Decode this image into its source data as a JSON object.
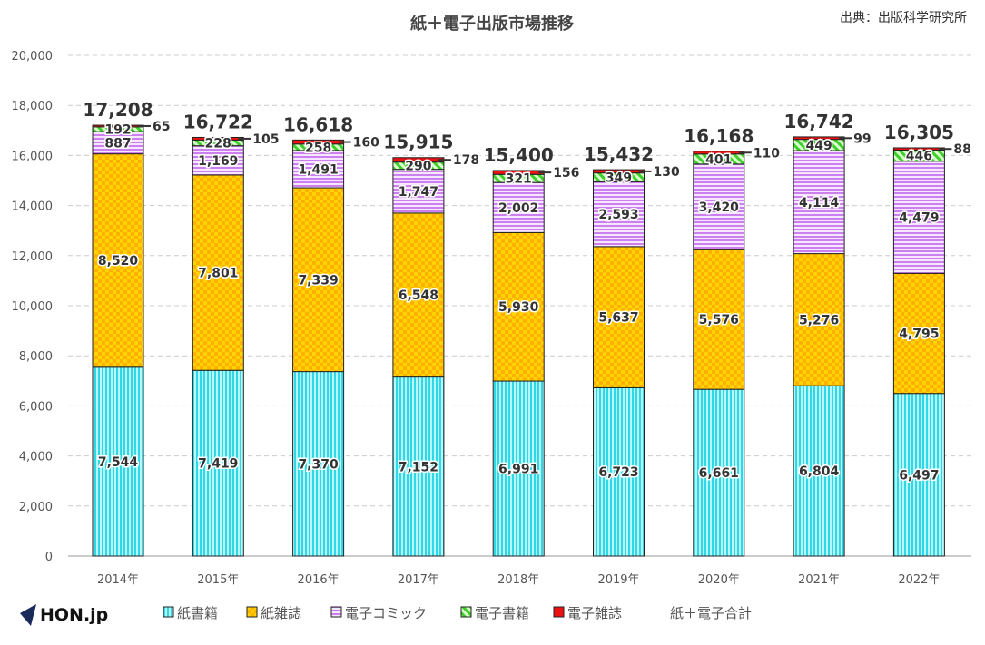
{
  "source": "出典：出版科学研究所",
  "logo": "HON.jp",
  "chart_data": {
    "type": "bar",
    "stacked": true,
    "title": "紙＋電子出版市場推移",
    "categories": [
      "2014年",
      "2015年",
      "2016年",
      "2017年",
      "2018年",
      "2019年",
      "2020年",
      "2021年",
      "2022年"
    ],
    "series": [
      {
        "name": "紙書籍",
        "color": "#55e8f0",
        "values": [
          7544,
          7419,
          7370,
          7152,
          6991,
          6723,
          6661,
          6804,
          6497
        ]
      },
      {
        "name": "紙雑誌",
        "color": "#ffcc00",
        "values": [
          8520,
          7801,
          7339,
          6548,
          5930,
          5637,
          5576,
          5276,
          4795
        ]
      },
      {
        "name": "電子コミック",
        "color": "#d99cf5",
        "values": [
          887,
          1169,
          1491,
          1747,
          2002,
          2593,
          3420,
          4114,
          4479
        ]
      },
      {
        "name": "電子書籍",
        "color": "#66e055",
        "values": [
          192,
          228,
          258,
          290,
          321,
          349,
          401,
          449,
          446
        ]
      },
      {
        "name": "電子雑誌",
        "color": "#ee1111",
        "values": [
          65,
          105,
          160,
          178,
          156,
          130,
          110,
          99,
          88
        ]
      }
    ],
    "totals_name": "紙＋電子合計",
    "totals": [
      17208,
      16722,
      16618,
      15915,
      15400,
      15432,
      16168,
      16742,
      16305
    ],
    "ylim": [
      0,
      20000
    ],
    "yticks": [
      0,
      2000,
      4000,
      6000,
      8000,
      10000,
      12000,
      14000,
      16000,
      18000,
      20000
    ],
    "grid": true,
    "legend_position": "bottom"
  }
}
